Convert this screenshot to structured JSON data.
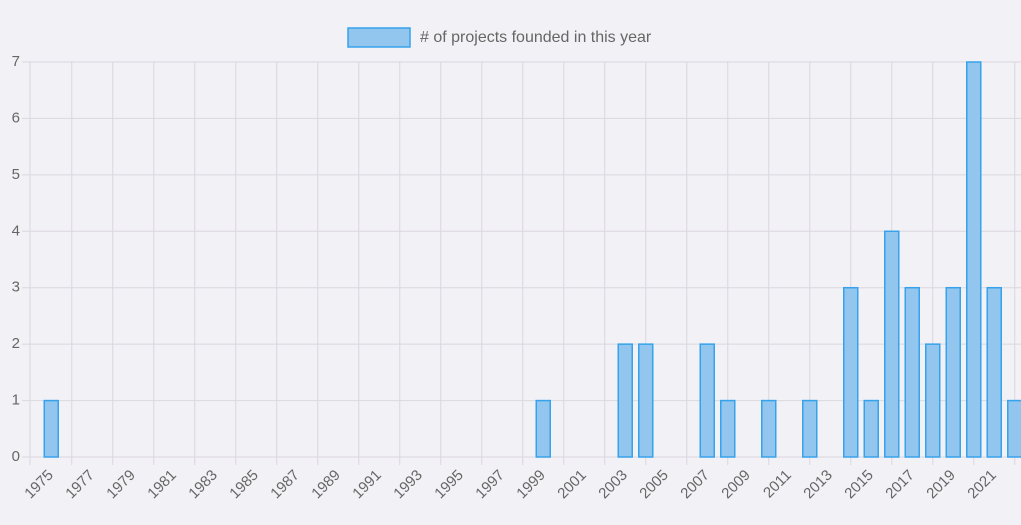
{
  "chart_data": {
    "type": "bar",
    "legend": "# of projects founded in this year",
    "color": "#93c6ee",
    "border_color": "#36a2eb",
    "categories": [
      "1975",
      null,
      "1977",
      null,
      "1979",
      null,
      "1981",
      null,
      "1983",
      null,
      "1985",
      null,
      "1987",
      null,
      "1989",
      null,
      "1991",
      null,
      "1993",
      null,
      "1995",
      null,
      "1997",
      null,
      "1999",
      null,
      "2001",
      null,
      "2003",
      null,
      "2005",
      null,
      "2007",
      null,
      "2009",
      null,
      "2011",
      null,
      "2013",
      null,
      "2015",
      null,
      "2017",
      null,
      "2019",
      null,
      "2021",
      null
    ],
    "values": [
      1,
      0,
      0,
      0,
      0,
      0,
      0,
      0,
      0,
      0,
      0,
      0,
      0,
      0,
      0,
      0,
      0,
      0,
      0,
      0,
      0,
      0,
      0,
      0,
      1,
      0,
      0,
      0,
      2,
      2,
      0,
      0,
      2,
      1,
      0,
      1,
      0,
      1,
      0,
      3,
      1,
      4,
      3,
      2,
      3,
      7,
      3,
      1
    ],
    "ylim": [
      0,
      7
    ],
    "yticks": [
      0,
      1,
      2,
      3,
      4,
      5,
      6,
      7
    ],
    "grid": true
  }
}
